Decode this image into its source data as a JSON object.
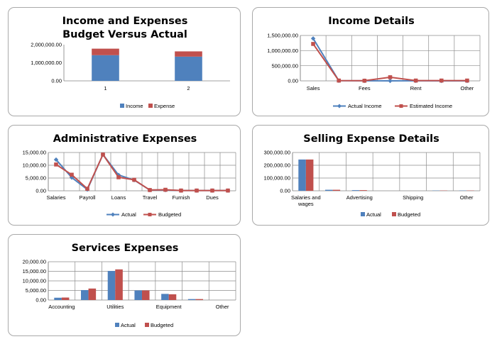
{
  "chart_data": [
    {
      "id": "income-expenses",
      "type": "bar",
      "stacked": true,
      "title": [
        "Income and Expenses",
        "Budget Versus Actual"
      ],
      "categories": [
        "1",
        "2"
      ],
      "series": [
        {
          "name": "Income",
          "values": [
            1420000,
            1340000
          ],
          "color": "#4f81bd"
        },
        {
          "name": "Expense",
          "values": [
            360000,
            290000
          ],
          "color": "#c0504d"
        }
      ],
      "ylim": [
        0,
        2000000
      ],
      "yticks": [
        0,
        1000000,
        2000000
      ],
      "ytick_labels": [
        "0.00",
        "1,000,000.00",
        "2,000,000.00"
      ],
      "grid": false,
      "legend": "bottom"
    },
    {
      "id": "income-details",
      "type": "line",
      "title": [
        "Income Details"
      ],
      "categories": [
        "Sales",
        "",
        "Fees",
        "",
        "Rent",
        "",
        "Other"
      ],
      "series": [
        {
          "name": "Actual Income",
          "values": [
            1400000,
            5000,
            3000,
            0,
            2000,
            0,
            0
          ],
          "color": "#4f81bd",
          "marker": "diamond"
        },
        {
          "name": "Estimated Income",
          "values": [
            1220000,
            10000,
            5000,
            120000,
            10000,
            10000,
            10000
          ],
          "color": "#c0504d",
          "marker": "square"
        }
      ],
      "ylim": [
        0,
        1500000
      ],
      "yticks": [
        0,
        500000,
        1000000,
        1500000
      ],
      "ytick_labels": [
        "0.00",
        "500,000.00",
        "1,000,000.00",
        "1,500,000.00"
      ],
      "grid": true,
      "legend": "bottom"
    },
    {
      "id": "administrative-expenses",
      "type": "line",
      "title": [
        "Administrative Expenses"
      ],
      "categories": [
        "Salaries",
        "",
        "Payroll",
        "",
        "Loans",
        "",
        "Travel",
        "",
        "Furnish",
        "",
        "Dues",
        ""
      ],
      "series": [
        {
          "name": "Actual",
          "values": [
            12200,
            5200,
            500,
            14200,
            6200,
            4200,
            300,
            300,
            100,
            100,
            100,
            100
          ],
          "color": "#4f81bd",
          "marker": "diamond"
        },
        {
          "name": "Budgeted",
          "values": [
            10300,
            6300,
            800,
            14200,
            5300,
            4300,
            300,
            400,
            100,
            100,
            100,
            100
          ],
          "color": "#c0504d",
          "marker": "square"
        }
      ],
      "ylim": [
        0,
        15000
      ],
      "yticks": [
        0,
        5000,
        10000,
        15000
      ],
      "ytick_labels": [
        "0.00",
        "5,000.00",
        "10,000.00",
        "15,000.00"
      ],
      "grid": true,
      "legend": "bottom"
    },
    {
      "id": "selling-expense-details",
      "type": "bar",
      "title": [
        "Selling Expense Details"
      ],
      "categories": [
        "Salaries and wages",
        "",
        "Advertising",
        "",
        "Shipping",
        "",
        "Other"
      ],
      "category_labels": [
        [
          "Salaries and",
          "wages"
        ],
        [
          ""
        ],
        [
          "Advertising"
        ],
        [
          ""
        ],
        [
          "Shipping"
        ],
        [
          ""
        ],
        [
          "Other"
        ]
      ],
      "series": [
        {
          "name": "Actual",
          "values": [
            245000,
            8000,
            5000,
            0,
            0,
            2000,
            2000
          ],
          "color": "#4f81bd"
        },
        {
          "name": "Budgeted",
          "values": [
            245000,
            8000,
            5000,
            0,
            0,
            2000,
            2000
          ],
          "color": "#c0504d"
        }
      ],
      "ylim": [
        0,
        300000
      ],
      "yticks": [
        0,
        100000,
        200000,
        300000
      ],
      "ytick_labels": [
        "0.00",
        "100,000.00",
        "200,000.00",
        "300,000.00"
      ],
      "grid": true,
      "legend": "bottom"
    },
    {
      "id": "services-expenses",
      "type": "bar",
      "title": [
        "Services Expenses"
      ],
      "categories": [
        "Accounting",
        "",
        "Utilities",
        "",
        "Equipment",
        "",
        "Other"
      ],
      "series": [
        {
          "name": "Actual",
          "values": [
            1200,
            5200,
            15200,
            5000,
            3200,
            500,
            0
          ],
          "color": "#4f81bd"
        },
        {
          "name": "Budgeted",
          "values": [
            1300,
            6000,
            16000,
            5000,
            3000,
            500,
            0
          ],
          "color": "#c0504d"
        }
      ],
      "ylim": [
        0,
        20000
      ],
      "yticks": [
        0,
        5000,
        10000,
        15000,
        20000
      ],
      "ytick_labels": [
        "0.00",
        "5,000.00",
        "10,000.00",
        "15,000.00",
        "20,000.00"
      ],
      "grid": true,
      "legend": "bottom"
    }
  ]
}
